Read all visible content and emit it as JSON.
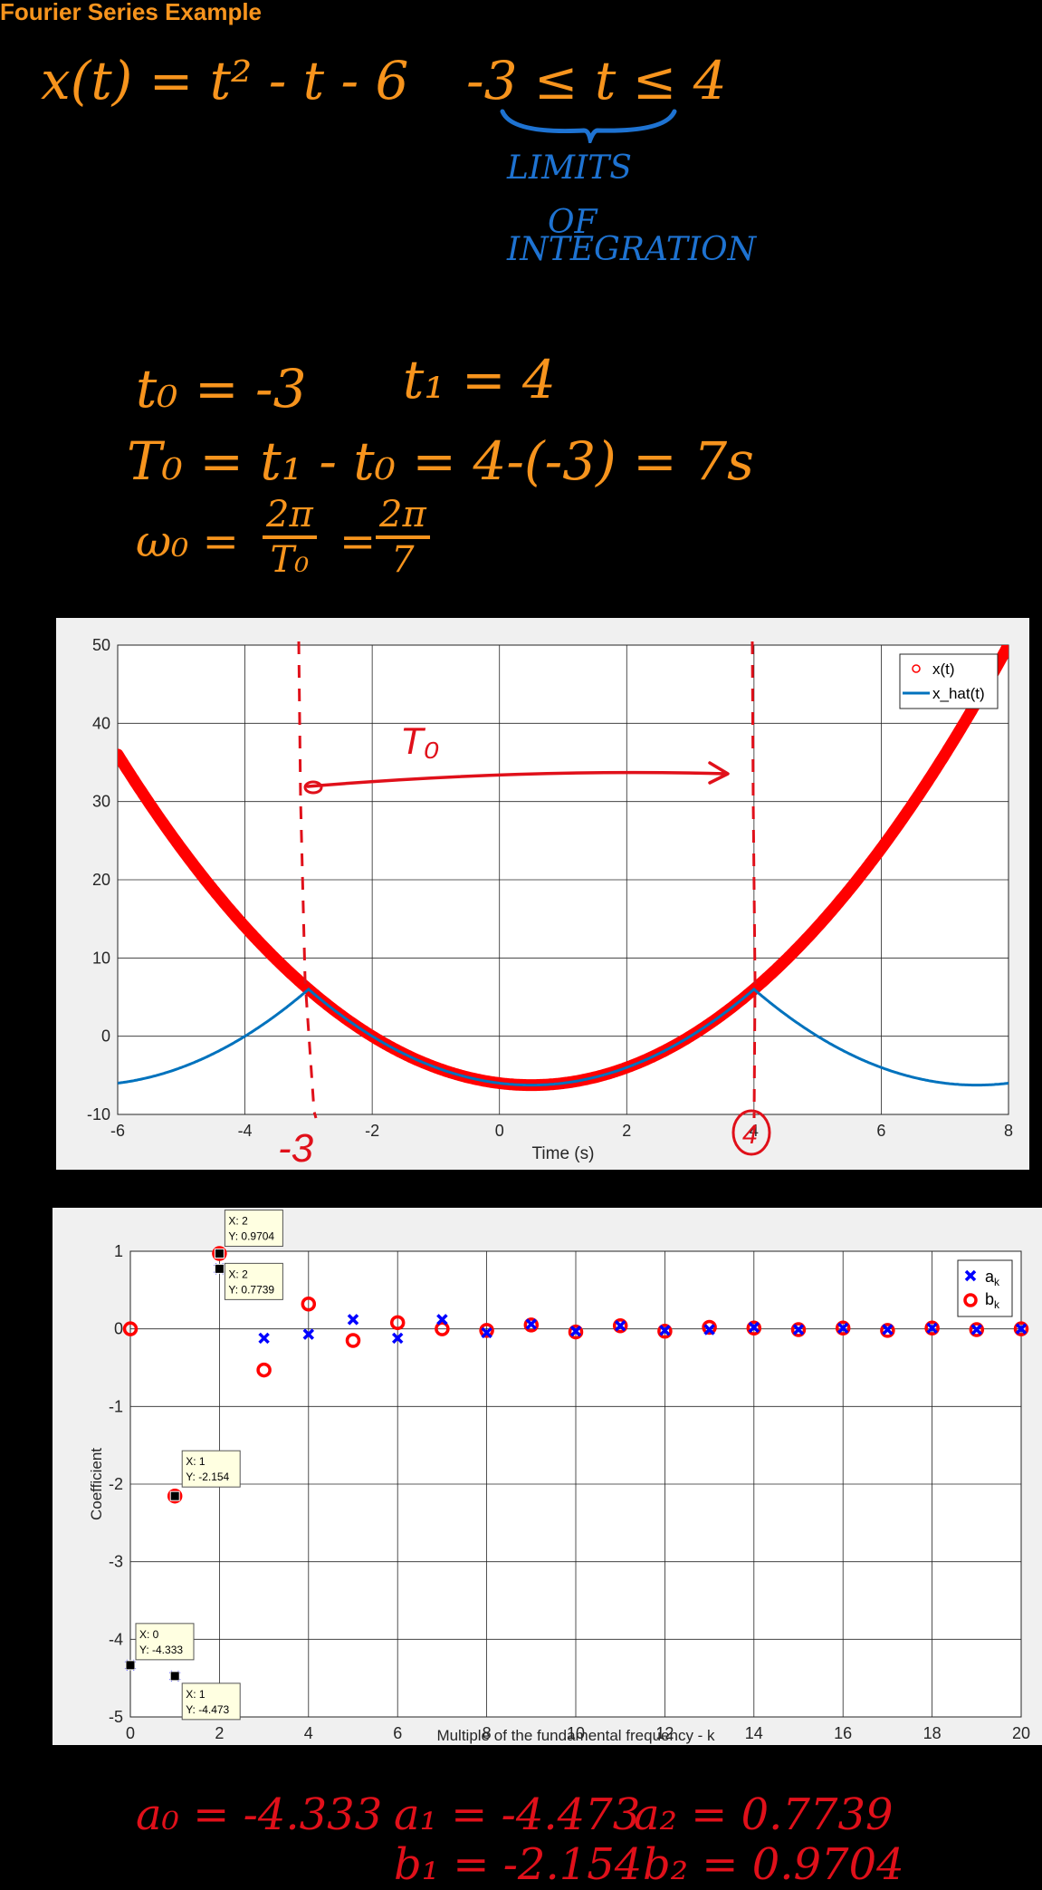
{
  "page": {
    "title": "Fourier Series Example",
    "notes": {
      "function": "x(t) = t² - t - 6",
      "range": "-3 ≤ t ≤ 4",
      "limits1": "LIMITS",
      "limits2": "OF",
      "limits3": "INTEGRATION",
      "t0": "t₀ = -3",
      "t1": "t₁ = 4",
      "period": "T₀ = t₁ - t₀ = 4-(-3) = 7s",
      "omega": "ω₀ =",
      "omega_num1": "2π",
      "omega_den1": "T₀",
      "omega_eq": "=",
      "omega_num2": "2π",
      "omega_den2": "7"
    },
    "annotations": {
      "T0": "T₀",
      "minus3": "-3",
      "four": "4"
    },
    "results": {
      "a0": "a₀ = -4.333",
      "a1": "a₁ = -4.473",
      "a2": "a₂ = 0.7739",
      "b1": "b₁ = -2.154",
      "b2": "b₂ = 0.9704"
    }
  },
  "colors": {
    "orange": "#f7941d",
    "blue_ink": "#1e73d2",
    "red_ink": "#e0101a",
    "xhat": "#0072bd",
    "ak": "#0000ff",
    "bk": "#ff0000"
  },
  "chart_data": [
    {
      "type": "line",
      "xlabel": "Time (s)",
      "ylabel": "",
      "xlim": [
        -6,
        8
      ],
      "ylim": [
        -10,
        50
      ],
      "xticks": [
        -6,
        -4,
        -2,
        0,
        2,
        4,
        6,
        8
      ],
      "yticks": [
        -10,
        0,
        10,
        20,
        30,
        40,
        50
      ],
      "grid": true,
      "legend": "top-right",
      "series": [
        {
          "name": "x(t)",
          "function": "t^2 - t - 6",
          "x_range": [
            -6,
            8
          ],
          "marker": "circle",
          "color": "#ff0000"
        },
        {
          "name": "x_hat(t)",
          "function": "periodic extension of t^2 - t - 6 over [-3, 4], period 7",
          "x_range": [
            -6,
            8
          ],
          "color": "#0072bd"
        }
      ]
    },
    {
      "type": "scatter",
      "xlabel": "Multiple of the fundamental frequency - k",
      "ylabel": "Coefficient",
      "xlim": [
        0,
        20
      ],
      "ylim": [
        -5,
        1
      ],
      "xticks": [
        0,
        2,
        4,
        6,
        8,
        10,
        12,
        14,
        16,
        18,
        20
      ],
      "yticks": [
        -5,
        -4,
        -3,
        -2,
        -1,
        0,
        1
      ],
      "grid": true,
      "legend": "top-right",
      "series": [
        {
          "name": "a_k",
          "marker": "x",
          "color": "#0000ff",
          "x": [
            0,
            1,
            2,
            3,
            4,
            5,
            6,
            7,
            8,
            9,
            10,
            11,
            12,
            13,
            14,
            15,
            16,
            17,
            18,
            19,
            20
          ],
          "y": [
            -4.333,
            -4.473,
            0.7739,
            -0.12,
            -0.07,
            0.12,
            -0.12,
            0.12,
            -0.05,
            0.06,
            -0.03,
            0.04,
            -0.02,
            -0.01,
            0.02,
            -0.01,
            0.01,
            -0.01,
            0.01,
            -0.01,
            0.0
          ]
        },
        {
          "name": "b_k",
          "marker": "circle",
          "color": "#ff0000",
          "x": [
            0,
            1,
            2,
            3,
            4,
            5,
            6,
            7,
            8,
            9,
            10,
            11,
            12,
            13,
            14,
            15,
            16,
            17,
            18,
            19,
            20
          ],
          "y": [
            0.0,
            -2.154,
            0.9704,
            -0.53,
            0.32,
            -0.15,
            0.08,
            0.0,
            -0.02,
            0.05,
            -0.04,
            0.04,
            -0.03,
            0.02,
            0.01,
            -0.01,
            0.01,
            -0.02,
            0.01,
            -0.01,
            0.0
          ]
        }
      ],
      "datatips": [
        {
          "x_label": "X: 2",
          "y_label": "Y: 0.9704"
        },
        {
          "x_label": "X: 2",
          "y_label": "Y: 0.7739"
        },
        {
          "x_label": "X: 1",
          "y_label": "Y: -2.154"
        },
        {
          "x_label": "X: 0",
          "y_label": "Y: -4.333"
        },
        {
          "x_label": "X: 1",
          "y_label": "Y: -4.473"
        }
      ]
    }
  ]
}
